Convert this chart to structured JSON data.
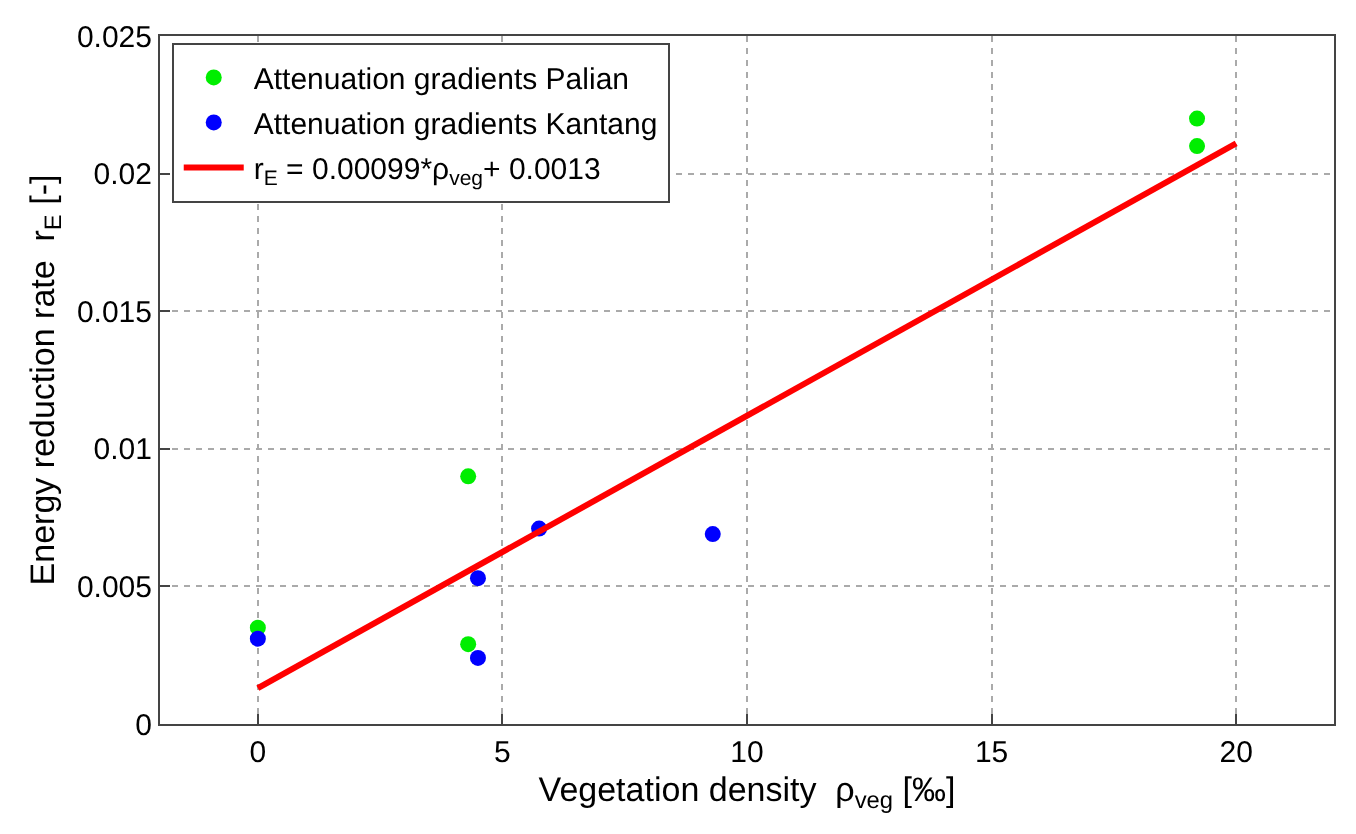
{
  "chart_data": {
    "type": "scatter",
    "xlabel": "Vegetation density  ρ$_{veg}$ [‰]",
    "ylabel": "Energy reduction rate  r$_{E}$ [-]",
    "xlim": [
      -2,
      22
    ],
    "xticks": [
      0,
      5,
      10,
      15,
      20
    ],
    "ylim": [
      0,
      0.025
    ],
    "yticks": [
      0,
      0.005,
      0.01,
      0.015,
      0.02,
      0.025
    ],
    "grid": true,
    "legend": "top left",
    "series": [
      {
        "name": "Attenuation gradients Palian",
        "marker": "circle",
        "color": "#00ee00",
        "x": [
          0,
          4.3,
          4.3,
          19.2,
          19.2
        ],
        "values": [
          0.0035,
          0.009,
          0.0029,
          0.022,
          0.021
        ]
      },
      {
        "name": "Attenuation gradients Kantang",
        "marker": "circle",
        "color": "#0000ff",
        "x": [
          0,
          4.5,
          4.5,
          5.75,
          9.3
        ],
        "values": [
          0.0031,
          0.0053,
          0.0024,
          0.0071,
          0.0069
        ]
      },
      {
        "name": "r$_{E}$ = 0.00099*ρ$_{veg}$+ 0.0013",
        "type": "line",
        "marker": "none",
        "color": "#ff0000",
        "line_style": "solid",
        "x": [
          0,
          20
        ],
        "values": [
          0.0013,
          0.0211
        ]
      }
    ]
  }
}
